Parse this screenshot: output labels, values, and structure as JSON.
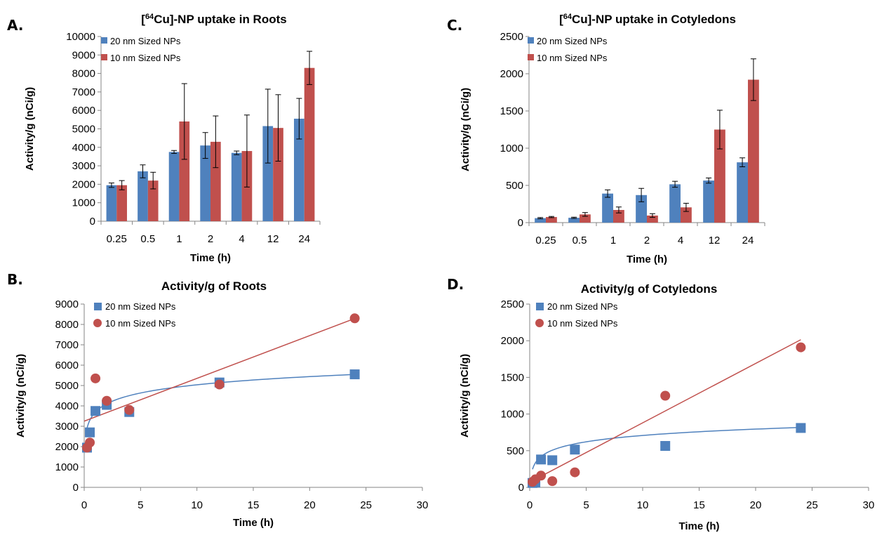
{
  "colors": {
    "series20": "#4F81BD",
    "series10": "#C0504D",
    "axis": "#868686"
  },
  "chart_data": [
    {
      "id": "A",
      "panel_label": "A.",
      "type": "bar",
      "title_pre": "[",
      "title_sup": "64",
      "title_post": "Cu]-NP uptake in Roots",
      "xlabel": "Time (h)",
      "ylabel": "Activity/g (nCi/g)",
      "categories": [
        "0.25",
        "0.5",
        "1",
        "2",
        "4",
        "12",
        "24"
      ],
      "ylim": [
        0,
        10000
      ],
      "yticks": [
        0,
        1000,
        2000,
        3000,
        4000,
        5000,
        6000,
        7000,
        8000,
        9000,
        10000
      ],
      "legend_position": "top-left",
      "series": [
        {
          "name": "20 nm Sized NPs",
          "values": [
            1950,
            2700,
            3750,
            4100,
            3700,
            5150,
            5550
          ],
          "errors": [
            120,
            350,
            80,
            700,
            100,
            2000,
            1100
          ]
        },
        {
          "name": "10 nm Sized NPs",
          "values": [
            1950,
            2200,
            5400,
            4300,
            3800,
            5050,
            8300
          ],
          "errors": [
            250,
            450,
            2050,
            1400,
            1950,
            1800,
            900
          ]
        }
      ]
    },
    {
      "id": "C",
      "panel_label": "C.",
      "type": "bar",
      "title_pre": "[",
      "title_sup": "64",
      "title_post": "Cu]-NP uptake in Cotyledons",
      "xlabel": "Time (h)",
      "ylabel": "Activity/g (nCi/g)",
      "categories": [
        "0.25",
        "0.5",
        "1",
        "2",
        "4",
        "12",
        "24"
      ],
      "ylim": [
        0,
        2500
      ],
      "yticks": [
        0,
        500,
        1000,
        1500,
        2000,
        2500
      ],
      "legend_position": "top-left",
      "series": [
        {
          "name": "20 nm Sized NPs",
          "values": [
            60,
            65,
            390,
            370,
            515,
            565,
            810
          ],
          "errors": [
            8,
            8,
            50,
            90,
            40,
            35,
            60
          ]
        },
        {
          "name": "10 nm Sized NPs",
          "values": [
            75,
            110,
            170,
            95,
            205,
            1250,
            1920
          ],
          "errors": [
            8,
            25,
            40,
            25,
            55,
            260,
            280
          ]
        }
      ]
    },
    {
      "id": "B",
      "panel_label": "B.",
      "type": "scatter",
      "title": "Activity/g of Roots",
      "xlabel": "Time (h)",
      "ylabel": "Activity/g (nCi/g)",
      "xlim": [
        0,
        30
      ],
      "xticks": [
        0,
        5,
        10,
        15,
        20,
        25,
        30
      ],
      "ylim": [
        0,
        9000
      ],
      "yticks": [
        0,
        1000,
        2000,
        3000,
        4000,
        5000,
        6000,
        7000,
        8000,
        9000
      ],
      "legend_position": "top-left",
      "series": [
        {
          "name": "20 nm Sized NPs",
          "marker": "square",
          "x": [
            0.25,
            0.5,
            1,
            2,
            4,
            12,
            24
          ],
          "y": [
            1950,
            2700,
            3750,
            4050,
            3700,
            5150,
            5550
          ],
          "trend": "log",
          "trend_a": 3700,
          "trend_b": 580
        },
        {
          "name": "10 nm Sized NPs",
          "marker": "circle",
          "x": [
            0.25,
            0.5,
            1,
            2,
            4,
            12,
            24
          ],
          "y": [
            1950,
            2200,
            5350,
            4250,
            3800,
            5050,
            8300
          ],
          "trend": "linear",
          "trend_slope": 210,
          "trend_intercept": 3250
        }
      ]
    },
    {
      "id": "D",
      "panel_label": "D.",
      "type": "scatter",
      "title": "Activity/g of Cotyledons",
      "xlabel": "Time (h)",
      "ylabel": "Activity/g (nCi/g)",
      "xlim": [
        0,
        30
      ],
      "xticks": [
        0,
        5,
        10,
        15,
        20,
        25,
        30
      ],
      "ylim": [
        0,
        2500
      ],
      "yticks": [
        0,
        500,
        1000,
        1500,
        2000,
        2500
      ],
      "legend_position": "top-left",
      "series": [
        {
          "name": "20 nm Sized NPs",
          "marker": "square",
          "x": [
            0.25,
            0.5,
            1,
            2,
            4,
            12,
            24
          ],
          "y": [
            60,
            65,
            380,
            370,
            515,
            565,
            810
          ],
          "trend": "log",
          "trend_a": 420,
          "trend_b": 125
        },
        {
          "name": "10 nm Sized NPs",
          "marker": "circle",
          "x": [
            0.25,
            0.5,
            1,
            2,
            4,
            12,
            24
          ],
          "y": [
            75,
            110,
            160,
            85,
            205,
            1250,
            1910
          ],
          "trend": "linear",
          "trend_slope": 81,
          "trend_intercept": 70
        }
      ]
    }
  ]
}
